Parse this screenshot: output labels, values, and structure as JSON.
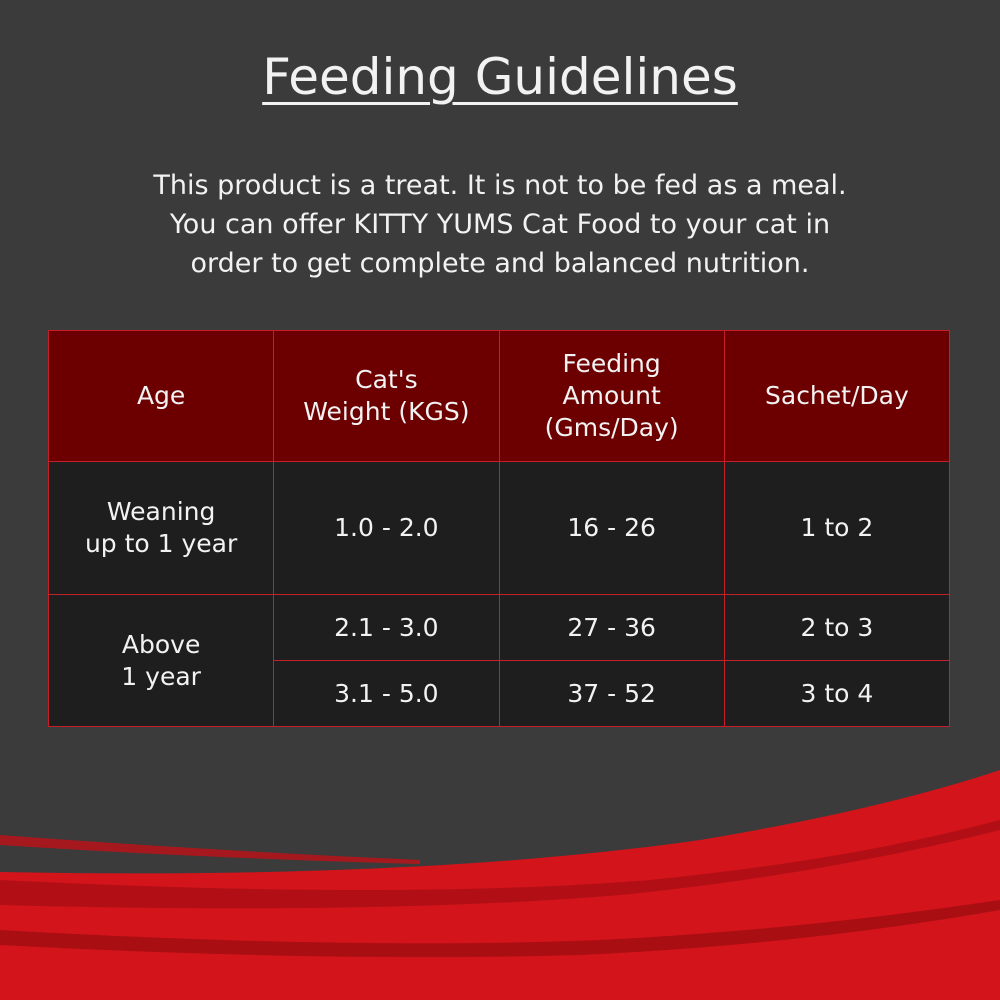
{
  "header": {
    "title": "Feeding Guidelines"
  },
  "intro": {
    "lines": [
      "This product is a treat. It is not to be fed as a meal.",
      "You can offer KITTY YUMS Cat Food to your cat in",
      "order to get complete and balanced nutrition."
    ]
  },
  "table": {
    "columns": [
      [
        "Age"
      ],
      [
        "Cat's",
        "Weight (KGS)"
      ],
      [
        "Feeding",
        "Amount",
        "(Gms/Day)"
      ],
      [
        "Sachet/Day"
      ]
    ],
    "groups": [
      {
        "age": [
          "Weaning",
          "up to 1 year"
        ],
        "rows": [
          [
            "1.0 - 2.0",
            "16 - 26",
            "1 to 2"
          ]
        ]
      },
      {
        "age": [
          "Above",
          "1 year"
        ],
        "rows": [
          [
            "2.1 - 3.0",
            "27 - 36",
            "2 to 3"
          ],
          [
            "3.1 - 5.0",
            "37 - 52",
            "3 to 4"
          ]
        ]
      }
    ]
  }
}
